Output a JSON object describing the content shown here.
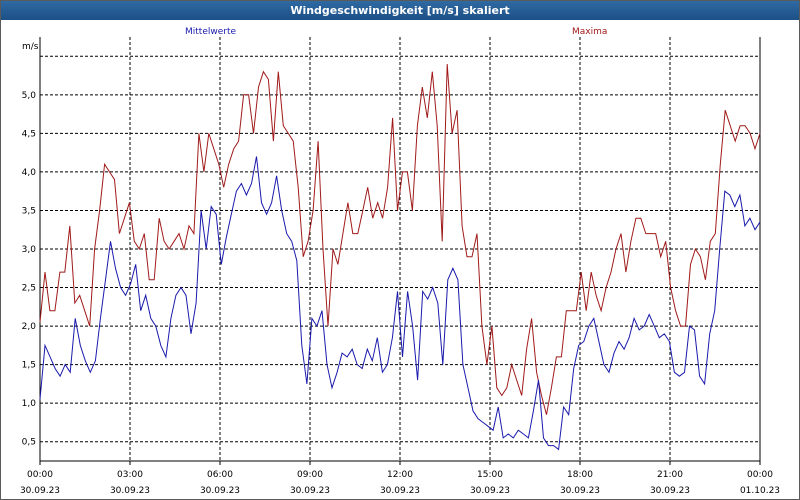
{
  "window": {
    "title": "Windgeschwindigkeit [m/s] skaliert"
  },
  "colors": {
    "series_mean": "#1a1aad",
    "series_max": "#a01a1a",
    "grid": "#000000",
    "axis_text": "#000000"
  },
  "chart_data": {
    "type": "line",
    "title": "Windgeschwindigkeit [m/s] skaliert",
    "ylabel": "m/s",
    "xlabel": "",
    "ylim": [
      0.25,
      5.75
    ],
    "xlim": [
      0,
      24
    ],
    "grid": true,
    "yticks": [
      0.5,
      1.0,
      1.5,
      2.0,
      2.5,
      3.0,
      3.5,
      4.0,
      4.5,
      5.0
    ],
    "ytick_labels": [
      "0,5",
      "1,0",
      "1,5",
      "2,0",
      "2,5",
      "3,0",
      "3,5",
      "4,0",
      "4,5",
      "5,0"
    ],
    "xticks": [
      {
        "time": "00:00",
        "date": "30.09.23"
      },
      {
        "time": "03:00",
        "date": "30.09.23"
      },
      {
        "time": "06:00",
        "date": "30.09.23"
      },
      {
        "time": "09:00",
        "date": "30.09.23"
      },
      {
        "time": "12:00",
        "date": "30.09.23"
      },
      {
        "time": "15:00",
        "date": "30.09.23"
      },
      {
        "time": "18:00",
        "date": "30.09.23"
      },
      {
        "time": "21:00",
        "date": "30.09.23"
      },
      {
        "time": "00:00",
        "date": "01.10.23"
      }
    ],
    "series": [
      {
        "name": "Mittelwerte",
        "color": "#1a1aad",
        "values": [
          1.05,
          1.75,
          1.6,
          1.45,
          1.35,
          1.5,
          1.4,
          2.1,
          1.75,
          1.55,
          1.4,
          1.55,
          2.1,
          2.6,
          3.1,
          2.75,
          2.5,
          2.4,
          2.55,
          2.8,
          2.2,
          2.4,
          2.1,
          2.0,
          1.75,
          1.6,
          2.1,
          2.4,
          2.5,
          2.4,
          1.9,
          2.3,
          3.5,
          3.0,
          3.55,
          3.45,
          2.8,
          3.15,
          3.45,
          3.75,
          3.85,
          3.7,
          3.85,
          4.2,
          3.6,
          3.45,
          3.6,
          3.95,
          3.5,
          3.2,
          3.1,
          2.85,
          1.75,
          1.25,
          2.1,
          2.0,
          2.2,
          1.5,
          1.2,
          1.4,
          1.65,
          1.6,
          1.7,
          1.5,
          1.45,
          1.7,
          1.55,
          1.85,
          1.4,
          1.5,
          1.85,
          2.45,
          1.6,
          2.45,
          2.0,
          1.3,
          2.45,
          2.35,
          2.5,
          2.3,
          1.5,
          2.6,
          2.75,
          2.6,
          1.5,
          1.2,
          0.9,
          0.8,
          0.75,
          0.7,
          0.65,
          0.95,
          0.55,
          0.6,
          0.55,
          0.65,
          0.6,
          0.55,
          0.9,
          1.3,
          0.55,
          0.45,
          0.45,
          0.4,
          0.95,
          0.85,
          1.45,
          1.75,
          1.8,
          2.0,
          2.1,
          1.8,
          1.5,
          1.4,
          1.65,
          1.8,
          1.7,
          1.85,
          2.1,
          1.95,
          2.0,
          2.15,
          2.0,
          1.85,
          1.9,
          1.8,
          1.4,
          1.35,
          1.4,
          2.0,
          1.95,
          1.35,
          1.25,
          1.9,
          2.2,
          3.0,
          3.75,
          3.7,
          3.55,
          3.7,
          3.3,
          3.4,
          3.25,
          3.35
        ]
      },
      {
        "name": "Maxima",
        "color": "#a01a1a",
        "values": [
          2.05,
          2.7,
          2.2,
          2.2,
          2.7,
          2.7,
          3.3,
          2.3,
          2.4,
          2.2,
          2.0,
          3.0,
          3.5,
          4.1,
          4.0,
          3.9,
          3.2,
          3.4,
          3.6,
          3.1,
          3.0,
          3.2,
          2.6,
          2.6,
          3.4,
          3.1,
          3.0,
          3.1,
          3.2,
          3.0,
          3.3,
          3.2,
          4.5,
          4.0,
          4.5,
          4.3,
          4.1,
          3.8,
          4.1,
          4.3,
          4.4,
          5.0,
          5.0,
          4.5,
          5.1,
          5.3,
          5.2,
          4.4,
          5.3,
          4.6,
          4.5,
          4.4,
          3.8,
          2.9,
          3.1,
          3.5,
          4.4,
          3.0,
          2.0,
          3.0,
          2.8,
          3.2,
          3.6,
          3.2,
          3.2,
          3.5,
          3.8,
          3.4,
          3.6,
          3.4,
          3.8,
          4.7,
          3.5,
          4.0,
          4.0,
          3.5,
          4.6,
          5.1,
          4.7,
          5.3,
          4.6,
          3.1,
          5.4,
          4.5,
          4.8,
          3.3,
          2.9,
          2.9,
          3.2,
          2.0,
          1.5,
          2.0,
          1.2,
          1.1,
          1.2,
          1.5,
          1.3,
          1.1,
          1.7,
          2.1,
          1.4,
          1.1,
          0.85,
          1.2,
          1.6,
          1.6,
          2.2,
          2.2,
          2.2,
          2.7,
          2.2,
          2.7,
          2.4,
          2.2,
          2.5,
          2.7,
          3.0,
          3.2,
          2.7,
          3.1,
          3.4,
          3.4,
          3.2,
          3.2,
          3.2,
          2.9,
          3.1,
          2.5,
          2.2,
          2.0,
          2.0,
          2.8,
          3.0,
          2.9,
          2.6,
          3.1,
          3.2,
          4.1,
          4.8,
          4.6,
          4.4,
          4.6,
          4.6,
          4.5,
          4.3,
          4.5
        ]
      }
    ]
  }
}
